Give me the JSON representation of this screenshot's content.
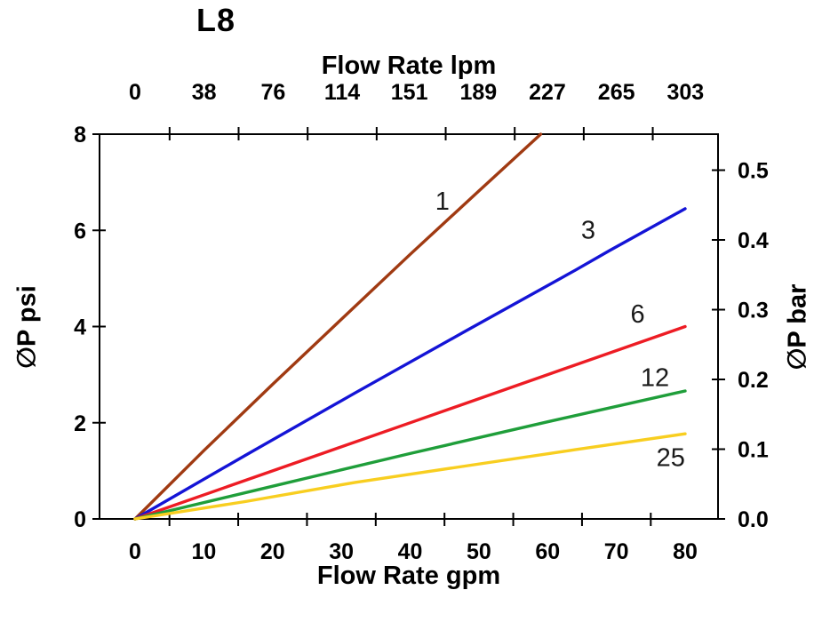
{
  "page": {
    "background": "#ffffff"
  },
  "chart_data": {
    "type": "line",
    "title": "L8",
    "grid": false,
    "legend": "none (inline labels on curves)",
    "axes": {
      "x_bottom": {
        "label": "Flow Rate gpm",
        "unit": "gpm",
        "range": [
          0,
          80
        ],
        "tick_labels": [
          0,
          10,
          20,
          30,
          40,
          50,
          60,
          70,
          80
        ],
        "tick_marks": [
          5,
          15,
          25,
          35,
          45,
          55,
          65,
          75
        ]
      },
      "x_top": {
        "label": "Flow Rate lpm",
        "unit": "lpm",
        "range": [
          0,
          303
        ],
        "tick_labels": [
          0,
          38,
          76,
          114,
          151,
          189,
          227,
          265,
          303
        ],
        "tick_marks": [
          19,
          57,
          95,
          133,
          171,
          209,
          247,
          285
        ]
      },
      "y_left": {
        "label": "∅P psi",
        "unit": "psi",
        "range": [
          0,
          8
        ],
        "tick_labels": [
          0,
          2,
          4,
          6,
          8
        ]
      },
      "y_right": {
        "label": "∅P bar",
        "unit": "bar",
        "range": [
          0,
          0.55
        ],
        "tick_labels": [
          "0.0",
          "0.1",
          "0.2",
          "0.3",
          "0.4",
          "0.5"
        ]
      }
    },
    "series": [
      {
        "name": "1",
        "color": "#A03A12",
        "points_gpm_psi": [
          [
            0,
            0
          ],
          [
            10,
            1.42
          ],
          [
            20,
            2.8
          ],
          [
            30,
            4.15
          ],
          [
            40,
            5.5
          ],
          [
            50,
            6.82
          ],
          [
            59,
            8.0
          ]
        ],
        "label": {
          "text": "1",
          "gpm": 44.7,
          "psi": 6.6
        }
      },
      {
        "name": "3",
        "color": "#1414D6",
        "points_gpm_psi": [
          [
            0,
            0
          ],
          [
            16,
            1.32
          ],
          [
            32,
            2.62
          ],
          [
            48,
            3.9
          ],
          [
            64,
            5.17
          ],
          [
            69,
            5.58
          ],
          [
            80,
            6.45
          ]
        ],
        "label": {
          "text": "3",
          "gpm": 65.9,
          "psi": 6.0
        }
      },
      {
        "name": "6",
        "color": "#ED1C24",
        "points_gpm_psi": [
          [
            0,
            0
          ],
          [
            20,
            1.0
          ],
          [
            40,
            2.0
          ],
          [
            60,
            3.0
          ],
          [
            80,
            4.0
          ]
        ],
        "label": {
          "text": "6",
          "gpm": 73.1,
          "psi": 4.25
        }
      },
      {
        "name": "12",
        "color": "#1F9E3A",
        "points_gpm_psi": [
          [
            0,
            0
          ],
          [
            20,
            0.68
          ],
          [
            40,
            1.36
          ],
          [
            60,
            2.02
          ],
          [
            80,
            2.66
          ]
        ],
        "label": {
          "text": "12",
          "gpm": 75.6,
          "psi": 2.93
        }
      },
      {
        "name": "25",
        "color": "#F8CE20",
        "points_gpm_psi": [
          [
            0,
            0
          ],
          [
            16,
            0.36
          ],
          [
            32,
            0.76
          ],
          [
            48,
            1.1
          ],
          [
            64,
            1.44
          ],
          [
            80,
            1.77
          ]
        ],
        "label": {
          "text": "25",
          "gpm": 77.9,
          "psi": 1.27
        }
      }
    ]
  }
}
